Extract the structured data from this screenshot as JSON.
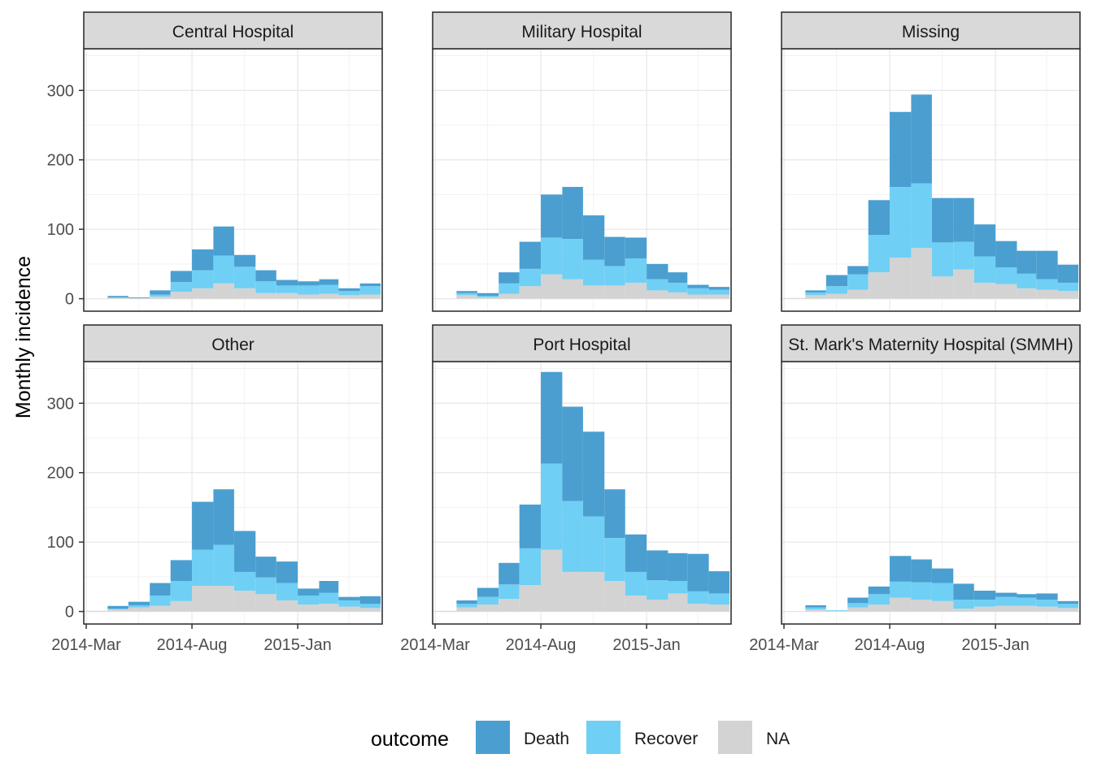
{
  "chart_data": {
    "type": "bar",
    "stacking": "stacked",
    "ylabel": "Monthly incidence",
    "xlabel": "",
    "ylim": [
      -18,
      360
    ],
    "y_ticks": [
      0,
      100,
      200,
      300
    ],
    "x_ticks": [
      "2014-Mar",
      "2014-Aug",
      "2015-Jan"
    ],
    "months": [
      "2014-Mar",
      "2014-Apr",
      "2014-May",
      "2014-Jun",
      "2014-Jul",
      "2014-Aug",
      "2014-Sep",
      "2014-Oct",
      "2014-Nov",
      "2014-Dec",
      "2015-Jan",
      "2015-Feb",
      "2015-Mar",
      "2015-Apr"
    ],
    "grid": true,
    "legend": {
      "title": "outcome",
      "position": "bottom",
      "entries": [
        {
          "label": "Death",
          "color": "#4a9fd0"
        },
        {
          "label": "Recover",
          "color": "#70cff4"
        },
        {
          "label": "NA",
          "color": "#d3d3d3"
        }
      ]
    },
    "panels": [
      {
        "title": "Central Hospital",
        "series": [
          {
            "name": "NA",
            "values": [
              0,
              1,
              1,
              3,
              10,
              15,
              22,
              15,
              8,
              8,
              6,
              7,
              5,
              6
            ]
          },
          {
            "name": "Recover",
            "values": [
              0,
              1,
              0,
              3,
              14,
              26,
              40,
              31,
              17,
              11,
              13,
              13,
              6,
              12
            ]
          },
          {
            "name": "Death",
            "values": [
              0,
              2,
              1,
              6,
              16,
              30,
              42,
              17,
              16,
              8,
              6,
              8,
              4,
              4
            ]
          }
        ]
      },
      {
        "title": "Military Hospital",
        "series": [
          {
            "name": "NA",
            "values": [
              0,
              5,
              2,
              7,
              18,
              35,
              28,
              19,
              19,
              23,
              12,
              9,
              6,
              6
            ]
          },
          {
            "name": "Recover",
            "values": [
              0,
              3,
              2,
              15,
              25,
              53,
              58,
              37,
              28,
              35,
              16,
              14,
              9,
              7
            ]
          },
          {
            "name": "Death",
            "values": [
              0,
              3,
              4,
              16,
              39,
              62,
              75,
              64,
              42,
              30,
              22,
              15,
              5,
              4
            ]
          }
        ]
      },
      {
        "title": "Missing",
        "series": [
          {
            "name": "NA",
            "values": [
              1,
              5,
              7,
              13,
              38,
              59,
              73,
              32,
              42,
              23,
              21,
              15,
              13,
              11
            ]
          },
          {
            "name": "Recover",
            "values": [
              0,
              4,
              11,
              22,
              54,
              102,
              93,
              49,
              40,
              38,
              24,
              21,
              15,
              12
            ]
          },
          {
            "name": "Death",
            "values": [
              0,
              3,
              16,
              12,
              50,
              108,
              128,
              64,
              63,
              46,
              38,
              33,
              41,
              26
            ]
          }
        ]
      },
      {
        "title": "Other",
        "series": [
          {
            "name": "NA",
            "values": [
              1,
              3,
              6,
              8,
              15,
              37,
              37,
              30,
              25,
              16,
              10,
              11,
              7,
              5
            ]
          },
          {
            "name": "Recover",
            "values": [
              0,
              1,
              3,
              15,
              29,
              52,
              59,
              27,
              24,
              25,
              13,
              16,
              9,
              6
            ]
          },
          {
            "name": "Death",
            "values": [
              0,
              4,
              5,
              18,
              30,
              69,
              80,
              59,
              30,
              31,
              10,
              17,
              5,
              11
            ]
          }
        ]
      },
      {
        "title": "Port Hospital",
        "series": [
          {
            "name": "NA",
            "values": [
              1,
              6,
              10,
              18,
              38,
              89,
              57,
              57,
              44,
              23,
              17,
              26,
              11,
              10
            ]
          },
          {
            "name": "Recover",
            "values": [
              0,
              5,
              11,
              21,
              53,
              124,
              102,
              80,
              62,
              34,
              28,
              18,
              18,
              16
            ]
          },
          {
            "name": "Death",
            "values": [
              0,
              5,
              13,
              31,
              63,
              132,
              136,
              122,
              70,
              54,
              43,
              40,
              54,
              32
            ]
          }
        ]
      },
      {
        "title": "St. Mark's Maternity Hospital (SMMH)",
        "series": [
          {
            "name": "NA",
            "values": [
              0,
              3,
              1,
              6,
              10,
              20,
              17,
              15,
              4,
              7,
              8,
              8,
              7,
              5
            ]
          },
          {
            "name": "Recover",
            "values": [
              0,
              3,
              1,
              6,
              15,
              23,
              25,
              26,
              13,
              10,
              13,
              12,
              10,
              6
            ]
          },
          {
            "name": "Death",
            "values": [
              0,
              3,
              0,
              8,
              11,
              37,
              33,
              21,
              23,
              13,
              6,
              5,
              9,
              4
            ]
          }
        ]
      }
    ]
  }
}
